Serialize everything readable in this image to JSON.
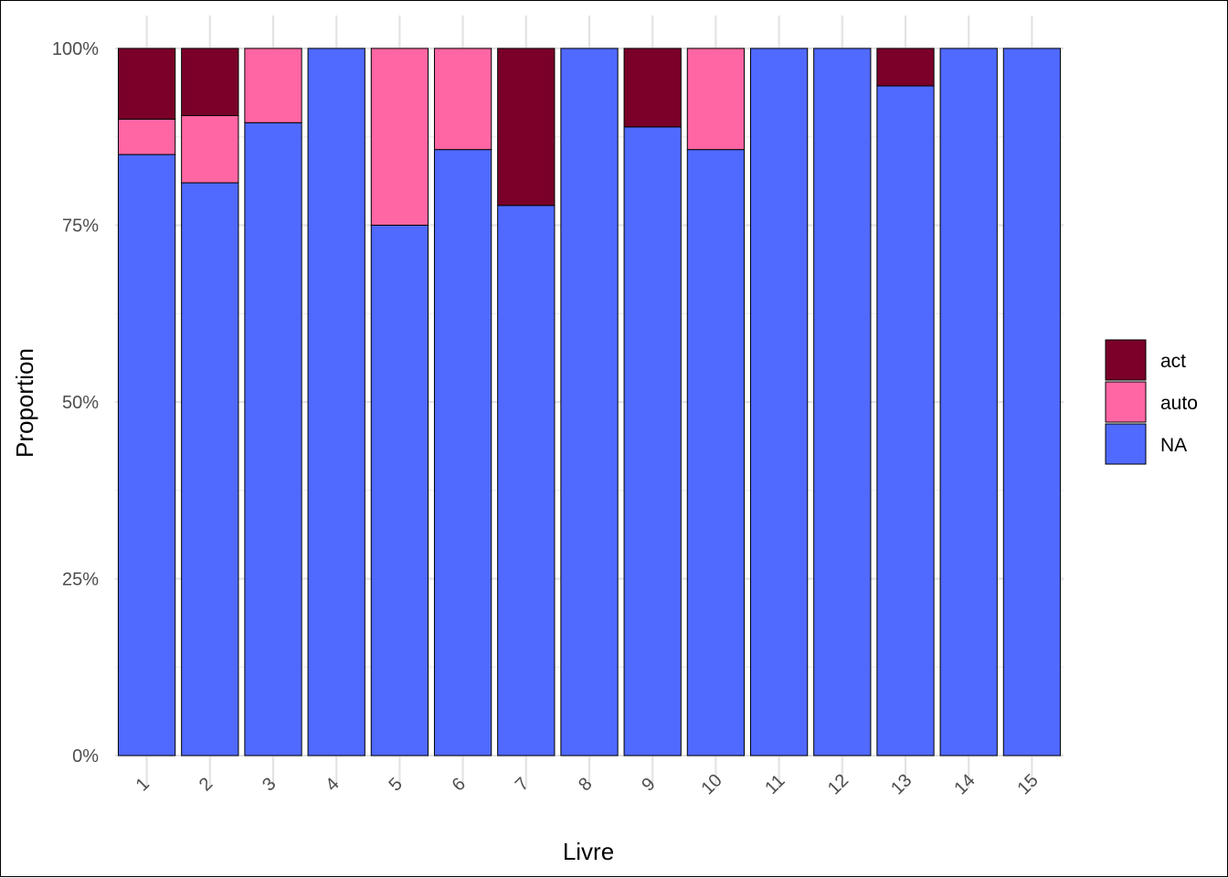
{
  "chart_data": {
    "type": "bar",
    "stacked": true,
    "percent": true,
    "xlabel": "Livre",
    "ylabel": "Proportion",
    "categories": [
      "1",
      "2",
      "3",
      "4",
      "5",
      "6",
      "7",
      "8",
      "9",
      "10",
      "11",
      "12",
      "13",
      "14",
      "15"
    ],
    "ylim": [
      0,
      1
    ],
    "y_ticks": [
      0,
      0.25,
      0.5,
      0.75,
      1
    ],
    "y_tick_labels": [
      "0%",
      "25%",
      "50%",
      "75%",
      "100%"
    ],
    "grid": true,
    "legend_position": "right",
    "series": [
      {
        "name": "act",
        "color": "#7A0029",
        "values": [
          0.1,
          0.095,
          0,
          0,
          0,
          0,
          0.222,
          0,
          0.111,
          0,
          0,
          0,
          0.053,
          0,
          0
        ]
      },
      {
        "name": "auto",
        "color": "#FF66A3",
        "values": [
          0.05,
          0.095,
          0.105,
          0,
          0.25,
          0.143,
          0,
          0,
          0,
          0.143,
          0,
          0,
          0,
          0,
          0
        ]
      },
      {
        "name": "NA",
        "color": "#5069FF",
        "values": [
          0.85,
          0.81,
          0.895,
          1,
          0.75,
          0.857,
          0.778,
          1,
          0.889,
          0.857,
          1,
          1,
          0.947,
          1,
          1
        ]
      }
    ]
  }
}
